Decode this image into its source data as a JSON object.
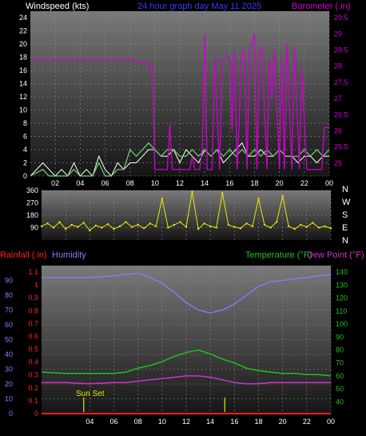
{
  "colors": {
    "wind": "#ffffff",
    "wind_avg": "#6fd66f",
    "barometer": "#d000d0",
    "direction": "#e8e800",
    "rainfall": "#ff2020",
    "humidity": "#8080ff",
    "temperature": "#20c020",
    "dew_point": "#cc33cc",
    "sunset_marker": "#e8e800",
    "axis_text": "#ffffff"
  },
  "header": {
    "windspeed": "Windspeed (kts)",
    "title": "24 hour graph day   May 11 2025",
    "barometer": "Barometer (.in)"
  },
  "chart_data": [
    {
      "type": "line",
      "name": "wind-barometer",
      "x_ticks": [
        "02",
        "04",
        "06",
        "08",
        "10",
        "12",
        "14",
        "16",
        "18",
        "20",
        "22",
        "00"
      ],
      "y_left_label": "Windspeed (kts)",
      "y_left_ticks": [
        0,
        2,
        4,
        6,
        8,
        10,
        12,
        14,
        16,
        18,
        20,
        22,
        24
      ],
      "ylim_left": [
        0,
        25
      ],
      "y_right_label": "Barometer (.in)",
      "y_right_ticks": [
        25,
        25.5,
        26,
        26.5,
        27,
        27.5,
        28,
        28.5,
        29,
        29.5
      ],
      "ylim_right": [
        24.6,
        29.7
      ],
      "series": [
        {
          "axis": "right",
          "x": [
            0,
            8.4,
            8.6,
            9.4,
            9.6,
            9.8,
            10.0,
            11.0,
            11.2,
            11.4,
            12.8,
            13.0,
            13.2,
            13.6,
            13.8,
            14.0,
            14.2,
            14.6,
            14.8,
            15.2,
            15.4,
            16.0,
            16.2,
            16.4,
            16.6,
            17.0,
            17.2,
            17.4,
            17.6,
            18.0,
            18.2,
            18.4,
            18.6,
            19.0,
            19.2,
            19.4,
            19.6,
            20.0,
            20.2,
            20.4,
            20.6,
            21.0,
            21.2,
            21.6,
            21.8,
            22.2,
            22.4,
            22.8,
            23.0,
            23.4,
            23.6,
            24.0
          ],
          "values": [
            28.2,
            28.2,
            28.1,
            28.1,
            27.9,
            28.0,
            24.8,
            24.8,
            26.2,
            24.8,
            24.8,
            25.2,
            24.8,
            24.8,
            25.5,
            29.0,
            24.8,
            24.8,
            28.3,
            24.8,
            28.2,
            28.3,
            26.0,
            28.5,
            24.8,
            28.5,
            28.4,
            24.8,
            28.5,
            29.0,
            24.8,
            28.4,
            28.6,
            24.8,
            28.2,
            27.0,
            28.5,
            24.8,
            28.3,
            24.8,
            28.7,
            24.8,
            28.6,
            24.8,
            27.9,
            24.8,
            24.8,
            24.8,
            24.8,
            24.8,
            26.1,
            26.1
          ]
        },
        {
          "axis": "left",
          "x": [
            0,
            1.0,
            1.5,
            2.0,
            2.5,
            3.0,
            3.5,
            4.0,
            4.5,
            5.0,
            5.5,
            6.0,
            6.5,
            7.0,
            7.5,
            8.0,
            8.5,
            9.0,
            9.5,
            10.0,
            10.5,
            11.0,
            11.5,
            12.0,
            12.5,
            13.0,
            13.5,
            14.0,
            14.5,
            15.0,
            15.5,
            16.0,
            16.5,
            17.0,
            17.5,
            18.0,
            18.5,
            19.0,
            19.5,
            20.0,
            20.5,
            21.0,
            21.5,
            22.0,
            22.5,
            23.0,
            23.5,
            24.0
          ],
          "values": [
            0,
            2,
            1,
            0,
            1,
            0,
            2,
            0,
            1,
            0,
            3,
            1,
            0,
            2,
            1,
            2,
            2,
            3,
            4,
            4,
            3,
            3,
            4,
            2,
            4,
            3,
            2,
            4,
            3,
            4,
            2,
            3,
            4,
            5,
            3,
            3,
            4,
            3,
            3,
            4,
            3,
            3,
            2,
            3,
            3,
            2,
            3,
            3
          ]
        },
        {
          "axis": "left",
          "x": [
            0,
            1.0,
            1.5,
            2.0,
            2.5,
            3.0,
            3.5,
            4.0,
            4.5,
            5.0,
            5.5,
            6.0,
            6.5,
            7.0,
            7.5,
            8.0,
            8.5,
            9.0,
            9.5,
            10.0,
            10.5,
            11.0,
            11.5,
            12.0,
            12.5,
            13.0,
            13.5,
            14.0,
            14.5,
            15.0,
            15.5,
            16.0,
            16.5,
            17.0,
            17.5,
            18.0,
            18.5,
            19.0,
            19.5,
            20.0,
            20.5,
            21.0,
            21.5,
            22.0,
            22.5,
            23.0,
            23.5,
            24.0
          ],
          "values": [
            0,
            1,
            0,
            0,
            0,
            0,
            1,
            0,
            0,
            0,
            2,
            0,
            0,
            1,
            1,
            4,
            3,
            4,
            5,
            4,
            3,
            4,
            4,
            3,
            3,
            4,
            3,
            4,
            3,
            4,
            3,
            4,
            3,
            4,
            3,
            4,
            3,
            4,
            3,
            4,
            3,
            3,
            3,
            4,
            3,
            4,
            3,
            4
          ]
        }
      ]
    },
    {
      "type": "scatter",
      "name": "wind-direction",
      "x_ticks": [
        "02",
        "04",
        "06",
        "08",
        "10",
        "12",
        "14",
        "16",
        "18",
        "20",
        "22",
        "00"
      ],
      "y_ticks": [
        360,
        270,
        180,
        90
      ],
      "ylim": [
        0,
        360
      ],
      "compass": [
        "N",
        "W",
        "S",
        "E",
        "N"
      ],
      "series": [
        {
          "x": [
            0,
            0.5,
            1.0,
            1.5,
            2.0,
            2.5,
            3.0,
            3.5,
            4.0,
            4.5,
            5.0,
            5.5,
            6.0,
            6.5,
            7.0,
            7.5,
            8.0,
            8.5,
            9.0,
            9.5,
            10.0,
            10.5,
            11.0,
            11.5,
            12.0,
            12.5,
            13.0,
            13.5,
            14.0,
            14.5,
            15.0,
            15.5,
            16.0,
            16.5,
            17.0,
            17.5,
            18.0,
            18.5,
            19.0,
            19.5,
            20.0,
            20.5,
            21.0,
            21.5,
            22.0,
            22.5,
            23.0,
            23.5,
            24.0
          ],
          "values": [
            100,
            120,
            90,
            130,
            80,
            110,
            95,
            125,
            70,
            105,
            90,
            115,
            80,
            100,
            130,
            95,
            110,
            85,
            120,
            100,
            300,
            90,
            110,
            130,
            95,
            350,
            80,
            120,
            100,
            90,
            340,
            110,
            95,
            85,
            120,
            100,
            300,
            110,
            90,
            130,
            320,
            100,
            80,
            110,
            95,
            125,
            90,
            100,
            85
          ]
        }
      ]
    },
    {
      "type": "line",
      "name": "rain-humidity-temperature",
      "x_ticks": [
        "04",
        "06",
        "08",
        "10",
        "12",
        "14",
        "16",
        "18",
        "20",
        "22",
        "00"
      ],
      "rainfall_label": "Rainfall (.in)",
      "humidity_label": "Humidity",
      "temperature_label": "Temperature (°F)",
      "dew_point_label": "Dew Point (°F)",
      "y_left_ticks": [
        0,
        10,
        20,
        30,
        40,
        50,
        60,
        70,
        80,
        90
      ],
      "ylim_left": [
        0,
        100
      ],
      "y_rain_ticks": [
        0,
        0.1,
        0.2,
        0.3,
        0.4,
        0.5,
        0.6,
        0.7,
        0.8,
        0.9,
        1,
        1.1
      ],
      "ylim_rain": [
        0,
        1.15
      ],
      "y_right_ticks": [
        40,
        50,
        60,
        70,
        80,
        90,
        100,
        110,
        120,
        130,
        140
      ],
      "ylim_right": [
        31,
        145
      ],
      "annotation": "Sun Set",
      "series": [
        {
          "x": [
            0,
            2,
            4,
            6,
            7,
            8,
            9,
            10,
            11,
            12,
            13,
            14,
            15,
            16,
            17,
            18,
            19,
            20,
            21,
            22,
            23,
            24
          ],
          "values": [
            92,
            92,
            92,
            93,
            94,
            95,
            92,
            88,
            82,
            75,
            70,
            68,
            70,
            74,
            80,
            86,
            89,
            90,
            91,
            92,
            93,
            94
          ]
        },
        {
          "x": [
            0,
            2,
            4,
            6,
            7,
            8,
            9,
            10,
            11,
            12,
            13,
            14,
            15,
            16,
            17,
            18,
            19,
            20,
            21,
            22,
            23,
            24
          ],
          "values": [
            63,
            62,
            62,
            62,
            63,
            66,
            68,
            71,
            75,
            78,
            80,
            77,
            73,
            70,
            66,
            64,
            63,
            62,
            62,
            61,
            61,
            60
          ]
        },
        {
          "x": [
            0,
            2,
            4,
            6,
            7,
            8,
            9,
            10,
            11,
            12,
            13,
            14,
            15,
            16,
            17,
            18,
            19,
            20,
            21,
            22,
            23,
            24
          ],
          "values": [
            55,
            55,
            54,
            55,
            55,
            56,
            57,
            58,
            59,
            60,
            60,
            59,
            57,
            55,
            54,
            54,
            55,
            55,
            55,
            55,
            55,
            55
          ]
        },
        {
          "x": [
            0,
            24
          ],
          "values": [
            0,
            0
          ]
        }
      ],
      "sunset_marks": [
        3.5,
        15.2
      ]
    }
  ]
}
